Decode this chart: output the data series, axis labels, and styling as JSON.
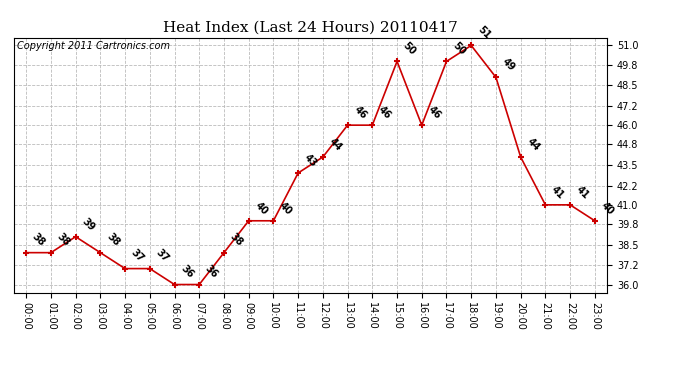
{
  "title": "Heat Index (Last 24 Hours) 20110417",
  "copyright_text": "Copyright 2011 Cartronics.com",
  "hours": [
    "00:00",
    "01:00",
    "02:00",
    "03:00",
    "04:00",
    "05:00",
    "06:00",
    "07:00",
    "08:00",
    "09:00",
    "10:00",
    "11:00",
    "12:00",
    "13:00",
    "14:00",
    "15:00",
    "16:00",
    "17:00",
    "18:00",
    "19:00",
    "20:00",
    "21:00",
    "22:00",
    "23:00"
  ],
  "values": [
    38,
    38,
    39,
    38,
    37,
    37,
    36,
    36,
    38,
    40,
    40,
    43,
    44,
    46,
    46,
    50,
    46,
    50,
    51,
    49,
    44,
    41,
    41,
    40
  ],
  "ylim": [
    35.5,
    51.5
  ],
  "yticks": [
    36.0,
    37.2,
    38.5,
    39.8,
    41.0,
    42.2,
    43.5,
    44.8,
    46.0,
    47.2,
    48.5,
    49.8,
    51.0
  ],
  "line_color": "#cc0000",
  "marker_color": "#cc0000",
  "background_color": "#ffffff",
  "grid_color": "#bbbbbb",
  "title_fontsize": 11,
  "label_fontsize": 7,
  "annotation_fontsize": 7,
  "copyright_fontsize": 7
}
